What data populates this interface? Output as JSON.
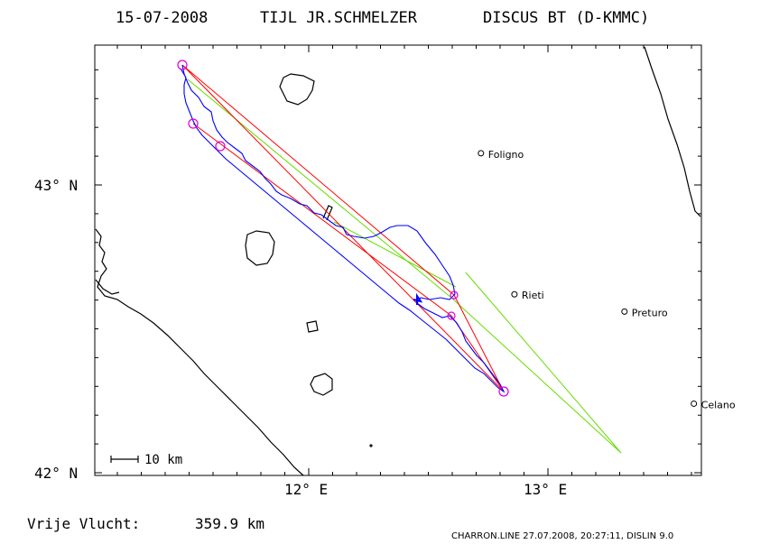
{
  "title": {
    "date": "15-07-2008",
    "pilot": "TIJL JR.SCHMELZER",
    "glider": "DISCUS BT (D-KMMC)"
  },
  "axes": {
    "lat_labels": [
      "43° N",
      "42° N"
    ],
    "lon_labels": [
      "12° E",
      "13° E"
    ]
  },
  "towns": [
    {
      "name": "Foligno",
      "lon": 12.72,
      "lat": 43.11
    },
    {
      "name": "Rieti",
      "lon": 12.86,
      "lat": 42.62
    },
    {
      "name": "Preturo",
      "lon": 13.32,
      "lat": 42.56
    },
    {
      "name": "Celano",
      "lon": 13.61,
      "lat": 42.24
    }
  ],
  "scale_bar": {
    "label": "10 km"
  },
  "distance": {
    "label": "Vrije Vlucht:",
    "value": "359.9 km"
  },
  "footer": "CHARRON.LINE 27.07.2008, 20:27:11, DISLIN 9.0",
  "colors": {
    "track": "#0000ff",
    "task_line": "#ff0000",
    "free_flight_line": "#66dd00",
    "turnpoint": "#dd00dd",
    "coast": "#000000"
  }
}
